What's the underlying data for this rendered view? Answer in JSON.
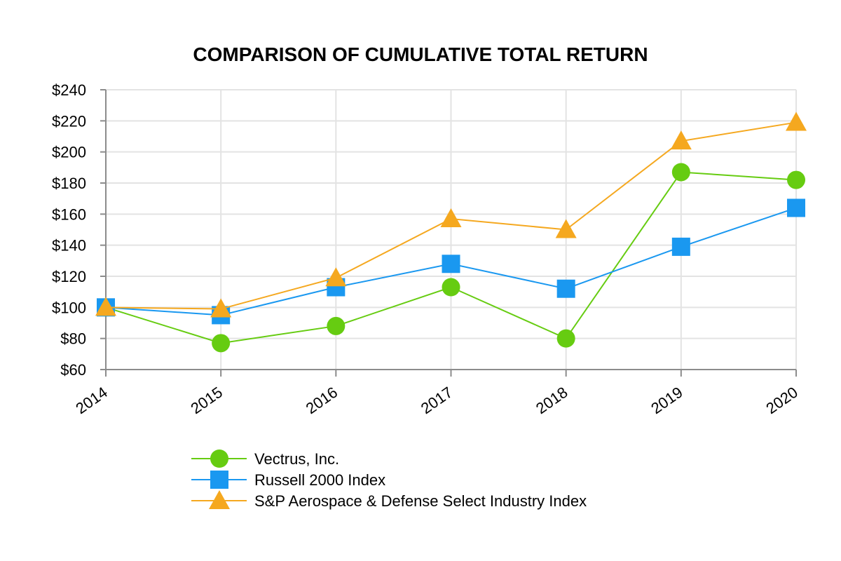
{
  "chart_data": {
    "type": "line",
    "title": "COMPARISON OF CUMULATIVE TOTAL RETURN",
    "xlabel": "",
    "ylabel": "",
    "categories": [
      "2014",
      "2015",
      "2016",
      "2017",
      "2018",
      "2019",
      "2020"
    ],
    "ylim": [
      60,
      240
    ],
    "yticks": [
      60,
      80,
      100,
      120,
      140,
      160,
      180,
      200,
      220,
      240
    ],
    "ytick_labels": [
      "$60",
      "$80",
      "$100",
      "$120",
      "$140",
      "$160",
      "$180",
      "$200",
      "$220",
      "$240"
    ],
    "grid": true,
    "legend": "bottom",
    "series": [
      {
        "name": "Vectrus, Inc.",
        "marker": "circle",
        "color": "#66cc11",
        "values": [
          100,
          77,
          88,
          113,
          80,
          187,
          182
        ]
      },
      {
        "name": "Russell 2000 Index",
        "marker": "square",
        "color": "#1a98f0",
        "values": [
          100,
          95,
          113,
          128,
          112,
          139,
          164
        ]
      },
      {
        "name": "S&P Aerospace & Defense Select Industry Index",
        "marker": "triangle",
        "color": "#f5a81f",
        "values": [
          100,
          99,
          119,
          157,
          150,
          207,
          219
        ]
      }
    ]
  }
}
